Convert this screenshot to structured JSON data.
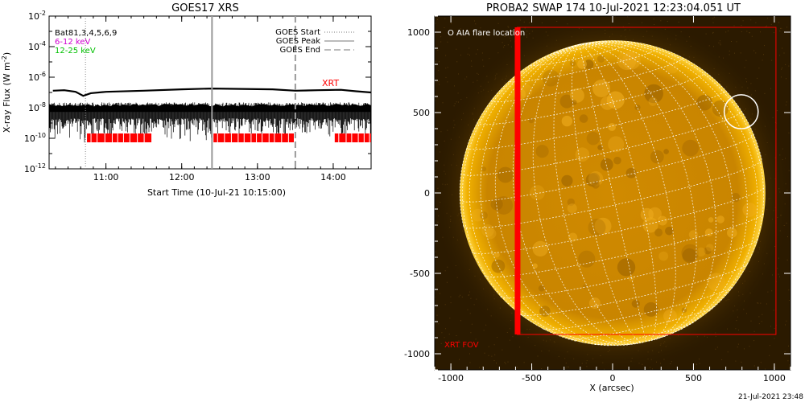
{
  "chart_data": [
    {
      "type": "line",
      "title": "GOES17 XRS",
      "xlabel": "Start Time (10-Jul-21 10:15:00)",
      "ylabel": "X-ray Flux (W m",
      "ylabel_unit_exponent": "-2",
      "yscale": "log",
      "ylim": [
        1e-12,
        0.01
      ],
      "x_tick_labels": [
        "11:00",
        "12:00",
        "13:00",
        "14:00"
      ],
      "x_tick_values_hours": [
        11.0,
        12.0,
        13.0,
        14.0
      ],
      "xlim_hours": [
        10.25,
        14.5
      ],
      "y_tick_exponents": [
        -2,
        -4,
        -6,
        -8,
        -10,
        -12
      ],
      "legend_left": [
        {
          "label": "Bat81,3,4,5,6,9",
          "color": "#000000"
        },
        {
          "label": "6-12 keV",
          "color": "#d000d0"
        },
        {
          "label": "12-25 keV",
          "color": "#00c000"
        }
      ],
      "legend_right": [
        {
          "label": "GOES Start",
          "style": "dotted"
        },
        {
          "label": "GOES Peak",
          "style": "solid"
        },
        {
          "label": "GOES End",
          "style": "dashed"
        }
      ],
      "markers": {
        "goes_start_hours": 10.73,
        "goes_peak_hours": 12.4,
        "goes_end_hours": 13.5
      },
      "xrt_label": "XRT",
      "xrt_color": "#ff0000",
      "series": [
        {
          "name": "",
          "color": "#000000",
          "x_hours": [
            10.3,
            10.45,
            10.6,
            10.7,
            10.8,
            11.0,
            11.5,
            12.0,
            12.4,
            12.8,
            13.2,
            13.5,
            13.8,
            14.1,
            14.3,
            14.5
          ],
          "y": [
            1.3e-07,
            1.4e-07,
            1.1e-07,
            6e-08,
            9e-08,
            1.1e-07,
            1.3e-07,
            1.6e-07,
            1.8e-07,
            1.7e-07,
            1.6e-07,
            1.3e-07,
            1.4e-07,
            1.5e-07,
            1.2e-07,
            1e-07
          ]
        }
      ],
      "noise_band": {
        "upper": 1.5e-08,
        "lower": 2e-09
      },
      "xrt_coverage_hours": [
        [
          10.75,
          11.6
        ],
        [
          12.42,
          13.48
        ],
        [
          14.02,
          14.5
        ]
      ]
    },
    {
      "type": "image",
      "title": "PROBA2 SWAP 174 10-Jul-2021 12:23:04.051 UT",
      "xlabel": "X (arcsec)",
      "ylabel": "",
      "xlim": [
        -1100,
        1100
      ],
      "ylim": [
        -1100,
        1100
      ],
      "x_ticks": [
        -1000,
        -500,
        0,
        500,
        1000
      ],
      "y_ticks": [
        1000,
        500,
        0,
        -500,
        -1000
      ],
      "x_tick_labels": [
        "-1000",
        "-500",
        "0",
        "500",
        "1000"
      ],
      "y_tick_labels": [
        "1000",
        "500",
        "0",
        "-500",
        "-1000"
      ],
      "sun_radius_arcsec": 945,
      "aia_flare": {
        "x": 795,
        "y": 505,
        "r": 105
      },
      "legend_aia": "O AIA flare location",
      "xrt_fov": {
        "x0": -590,
        "x1": 1010,
        "y0": -880,
        "y1": 1030
      },
      "xrt_fov_label": "XRT FOV",
      "xrt_bar": {
        "x0": -605,
        "x1": -570,
        "y0": -880,
        "y1": 1030
      },
      "disk_color": "#e8a000",
      "background_color": "#2b1a00"
    }
  ],
  "footer": {
    "timestamp": "21-Jul-2021 23:48"
  }
}
